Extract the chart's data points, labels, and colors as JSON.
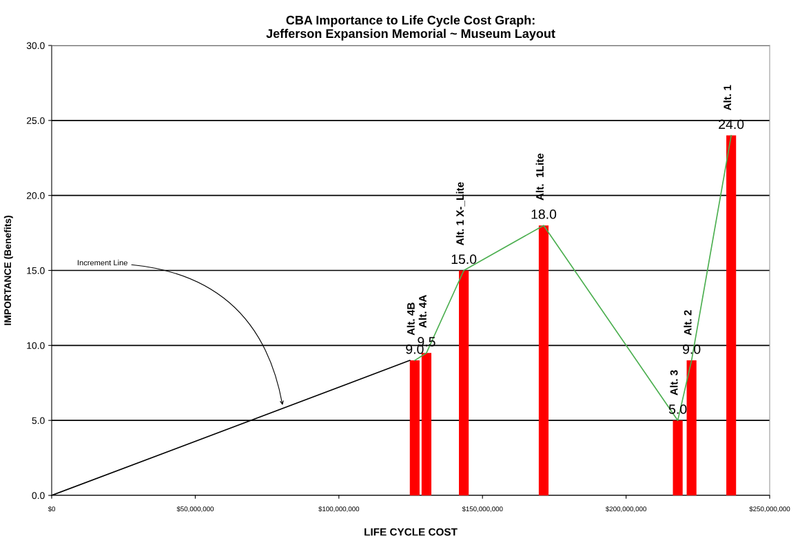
{
  "chart_data": {
    "type": "bar",
    "title": "CBA Importance to Life Cycle Cost Graph:\nJefferson Expansion Memorial ~ Museum Layout",
    "xlabel": "LIFE CYCLE COST",
    "ylabel": "IMPORTANCE (Benefits)",
    "x": [
      126400000,
      130500000,
      143500000,
      171300000,
      218000000,
      222800000,
      236600000
    ],
    "series": [
      {
        "color": "#ff0000",
        "values": [
          9.0,
          9.5,
          15.0,
          18.0,
          5.0,
          9.0,
          24.0
        ],
        "value_labels": [
          "9.0",
          "9.5",
          "15.0",
          "18.0",
          "5.0",
          "9.0",
          "24.0"
        ]
      },
      {
        "type": "line",
        "color": "#4caf50",
        "values": [
          9.0,
          9.5,
          15.0,
          18.0,
          5.0,
          9.0,
          24.0
        ]
      },
      {
        "type": "line",
        "color": "#000000",
        "x": [
          0,
          124700000
        ],
        "values": [
          0,
          9.0
        ]
      }
    ],
    "annotations": [
      {
        "text": "Alt. 4B",
        "x": 126400000,
        "y": 9.0
      },
      {
        "text": "Alt. 4A",
        "x": 130500000,
        "y": 9.5
      },
      {
        "text": "Alt. 1 X-_Lite",
        "x": 143500000,
        "y": 15.0
      },
      {
        "text": "Alt.  1Lite",
        "x": 171300000,
        "y": 18.0
      },
      {
        "text": "Alt. 3",
        "x": 218000000,
        "y": 5.0
      },
      {
        "text": "Alt. 2",
        "x": 222800000,
        "y": 9.0
      },
      {
        "text": "Alt. 1",
        "x": 236600000,
        "y": 24.0
      },
      {
        "text": "Increment Line",
        "x": 80500000,
        "y": 5.9
      }
    ],
    "xlim": [
      0,
      250000000
    ],
    "xticks": [
      {
        "value": 0,
        "label": "$0"
      },
      {
        "value": 50000000,
        "label": "$50,000,000"
      },
      {
        "value": 100000000,
        "label": "$100,000,000"
      },
      {
        "value": 150000000,
        "label": "$150,000,000"
      },
      {
        "value": 200000000,
        "label": "$200,000,000"
      },
      {
        "value": 250000000,
        "label": "$250,000,000"
      }
    ],
    "ylim": [
      0,
      30
    ],
    "yticks": [
      {
        "value": 0,
        "label": "0.0"
      },
      {
        "value": 5,
        "label": "5.0"
      },
      {
        "value": 10,
        "label": "10.0"
      },
      {
        "value": 15,
        "label": "15.0"
      },
      {
        "value": 20,
        "label": "20.0"
      },
      {
        "value": 25,
        "label": "25.0"
      },
      {
        "value": 30,
        "label": "30.0"
      }
    ],
    "grid": "y",
    "legend": false
  }
}
